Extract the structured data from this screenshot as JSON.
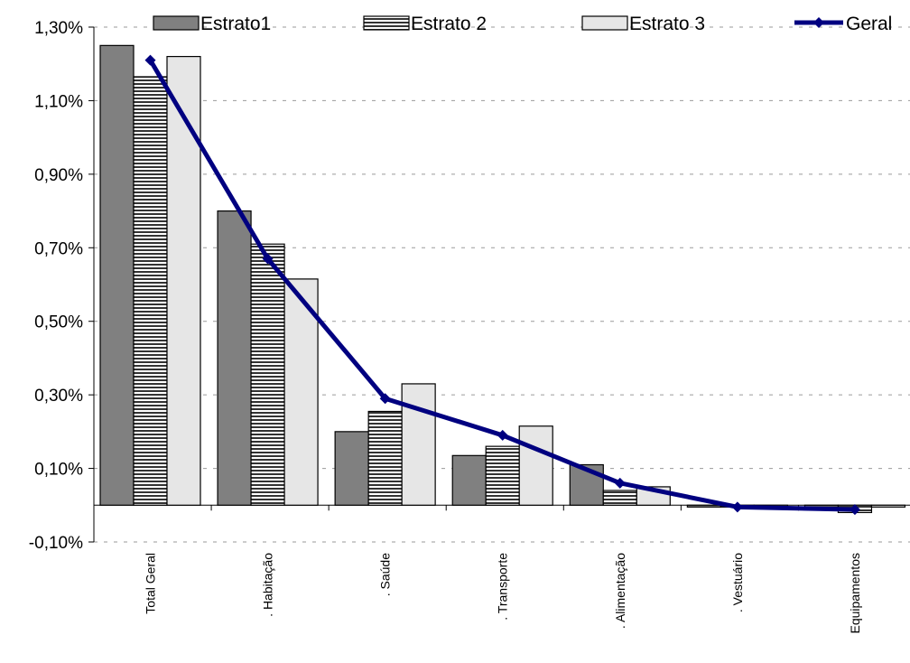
{
  "chart_data": {
    "type": "bar",
    "categories": [
      "Total Geral",
      ". Habitação",
      ". Saúde",
      ". Transporte",
      ". Alimentação",
      ". Vestuário",
      "Equipamentos"
    ],
    "series": [
      {
        "name": "Estrato1",
        "kind": "bar",
        "color": "#808080",
        "pattern": "solid",
        "values": [
          1.25,
          0.8,
          0.2,
          0.135,
          0.11,
          -0.005,
          -0.005
        ]
      },
      {
        "name": "Estrato 2",
        "kind": "bar",
        "color": "#808080",
        "pattern": "horizontal-stripes",
        "values": [
          1.165,
          0.71,
          0.255,
          0.16,
          0.04,
          -0.005,
          -0.02
        ]
      },
      {
        "name": "Estrato 3",
        "kind": "bar",
        "color": "#e6e6e6",
        "pattern": "solid",
        "values": [
          1.22,
          0.615,
          0.33,
          0.215,
          0.05,
          -0.005,
          -0.005
        ]
      },
      {
        "name": "Geral",
        "kind": "line",
        "color": "#000080",
        "marker": "diamond",
        "values": [
          1.21,
          0.67,
          0.29,
          0.19,
          0.06,
          -0.005,
          -0.012
        ]
      }
    ],
    "yticks": [
      "-0,10%",
      "0,10%",
      "0,30%",
      "0,50%",
      "0,70%",
      "0,90%",
      "1,10%",
      "1,30%"
    ],
    "ytick_values": [
      -0.1,
      0.1,
      0.3,
      0.5,
      0.7,
      0.9,
      1.1,
      1.3
    ],
    "ylim": [
      -0.1,
      1.3
    ],
    "grid": "horizontal dashed",
    "legend": "top",
    "xlabel": "",
    "ylabel": "",
    "title": ""
  }
}
